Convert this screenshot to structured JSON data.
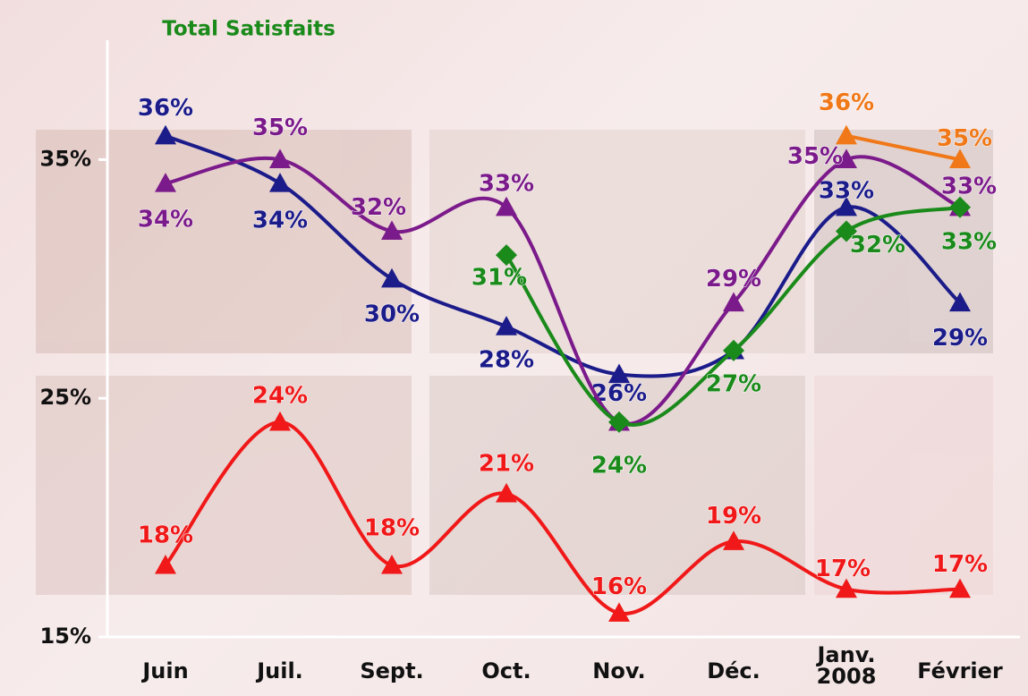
{
  "chart_data": {
    "type": "line",
    "title": "Total Satisfaits",
    "title_color": "#1a8a1a",
    "categories": [
      "Juin",
      "Juil.",
      "Sept.",
      "Oct.",
      "Nov.",
      "Déc.",
      "Janv.\n2008",
      "Février"
    ],
    "ylim": [
      15,
      40
    ],
    "yticks": [
      {
        "value": 15,
        "label": "15%"
      },
      {
        "value": 25,
        "label": "25%"
      },
      {
        "value": 35,
        "label": "35%"
      }
    ],
    "series": [
      {
        "color": "#1b1b8a",
        "marker": "triangle",
        "smooth": true,
        "values": [
          36,
          34,
          30,
          28,
          26,
          27,
          33,
          29
        ],
        "value_labels": [
          "36%",
          "34%",
          "30%",
          "28%",
          "26%",
          "27%",
          "33%",
          "29%"
        ]
      },
      {
        "color": "#7b1a8a",
        "marker": "triangle",
        "smooth": true,
        "values": [
          34,
          35,
          32,
          33,
          24,
          29,
          35,
          33
        ],
        "value_labels": [
          "34%",
          "35%",
          "32%",
          "33%",
          "24%",
          "29%",
          "35%",
          "33%"
        ]
      },
      {
        "color": "#1a8a1a",
        "marker": "diamond",
        "smooth": true,
        "values": [
          null,
          null,
          null,
          31,
          24,
          27,
          32,
          33
        ],
        "value_labels": [
          null,
          null,
          null,
          "31%",
          "24%",
          "27%",
          "32%",
          "33%"
        ]
      },
      {
        "color": "#f01818",
        "marker": "triangle",
        "smooth": true,
        "values": [
          18,
          24,
          18,
          21,
          16,
          19,
          17,
          17
        ],
        "value_labels": [
          "18%",
          "24%",
          "18%",
          "21%",
          "16%",
          "19%",
          "17%",
          "17%"
        ]
      },
      {
        "color": "#f07818",
        "marker": "triangle",
        "smooth": false,
        "values": [
          null,
          null,
          null,
          null,
          null,
          null,
          36,
          35
        ],
        "value_labels": [
          null,
          null,
          null,
          null,
          null,
          null,
          "36%",
          "35%"
        ]
      }
    ]
  }
}
